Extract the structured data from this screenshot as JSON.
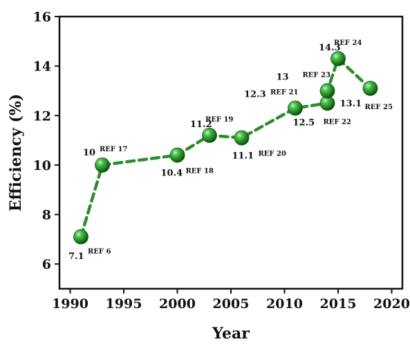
{
  "chart_data": {
    "type": "line",
    "xlabel": "Year",
    "ylabel": "Efficiency (%)",
    "xlim": [
      1989,
      2021
    ],
    "ylim": [
      5,
      16
    ],
    "xticks": [
      1990,
      1995,
      2000,
      2005,
      2010,
      2015,
      2020
    ],
    "yticks": [
      6,
      8,
      10,
      12,
      14,
      16
    ],
    "grid": false,
    "colors": {
      "line": "#2e8b2e",
      "marker": "#1f7a1f"
    },
    "series": [
      {
        "points": [
          {
            "x": 1991,
            "y": 7.1,
            "value_label": "7.1",
            "ref": "REF 6",
            "pos": "below"
          },
          {
            "x": 1993,
            "y": 10.0,
            "value_label": "10",
            "ref": "REF 17",
            "pos": "above"
          },
          {
            "x": 2000,
            "y": 10.4,
            "value_label": "10.4",
            "ref": "REF 18",
            "pos": "below"
          },
          {
            "x": 2003,
            "y": 11.2,
            "value_label": "11.2",
            "ref": "REF 19",
            "pos": "above"
          },
          {
            "x": 2006,
            "y": 11.1,
            "value_label": "11.1",
            "ref": "REF 20",
            "pos": "below"
          },
          {
            "x": 2011,
            "y": 12.3,
            "value_label": "12.3",
            "ref": "REF 21",
            "pos": "upper-left"
          },
          {
            "x": 2014,
            "y": 12.5,
            "value_label": "12.5",
            "ref": "REF 22",
            "pos": "lower-left"
          },
          {
            "x": 2014,
            "y": 13.0,
            "value_label": "13",
            "ref": "REF 23",
            "pos": "upper-left"
          },
          {
            "x": 2015,
            "y": 14.3,
            "value_label": "14.3",
            "ref": "REF 24",
            "pos": "above"
          },
          {
            "x": 2018,
            "y": 13.1,
            "value_label": "13.1",
            "ref": "REF 25",
            "pos": "lower-left"
          }
        ]
      }
    ]
  }
}
